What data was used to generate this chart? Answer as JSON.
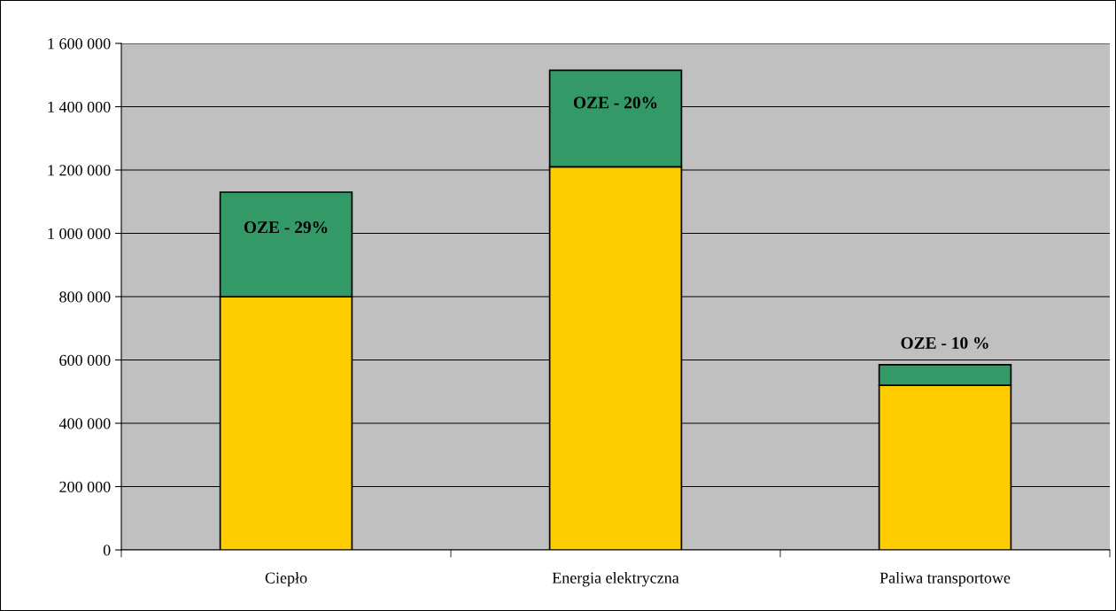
{
  "chart_data": {
    "type": "bar",
    "stacked": true,
    "categories": [
      "Ciepło",
      "Energia elektryczna",
      "Paliwa transportowe"
    ],
    "series": [
      {
        "color": "#ffcc00",
        "values": [
          800000,
          1210000,
          520000
        ]
      },
      {
        "color": "#339966",
        "values": [
          330000,
          305000,
          65000
        ]
      }
    ],
    "ylim": [
      0,
      1600000
    ],
    "yticks": [
      {
        "value": 0,
        "label": "0"
      },
      {
        "value": 200000,
        "label": "200 000"
      },
      {
        "value": 400000,
        "label": "400 000"
      },
      {
        "value": 600000,
        "label": "600 000"
      },
      {
        "value": 800000,
        "label": "800 000"
      },
      {
        "value": 1000000,
        "label": "1 000 000"
      },
      {
        "value": 1200000,
        "label": "1 200 000"
      },
      {
        "value": 1400000,
        "label": "1 400 000"
      },
      {
        "value": 1600000,
        "label": "1 600 000"
      }
    ],
    "grid": "y",
    "legend": false,
    "annotations": [
      "OZE - 29%",
      "OZE - 20%",
      "OZE - 10 %"
    ]
  }
}
